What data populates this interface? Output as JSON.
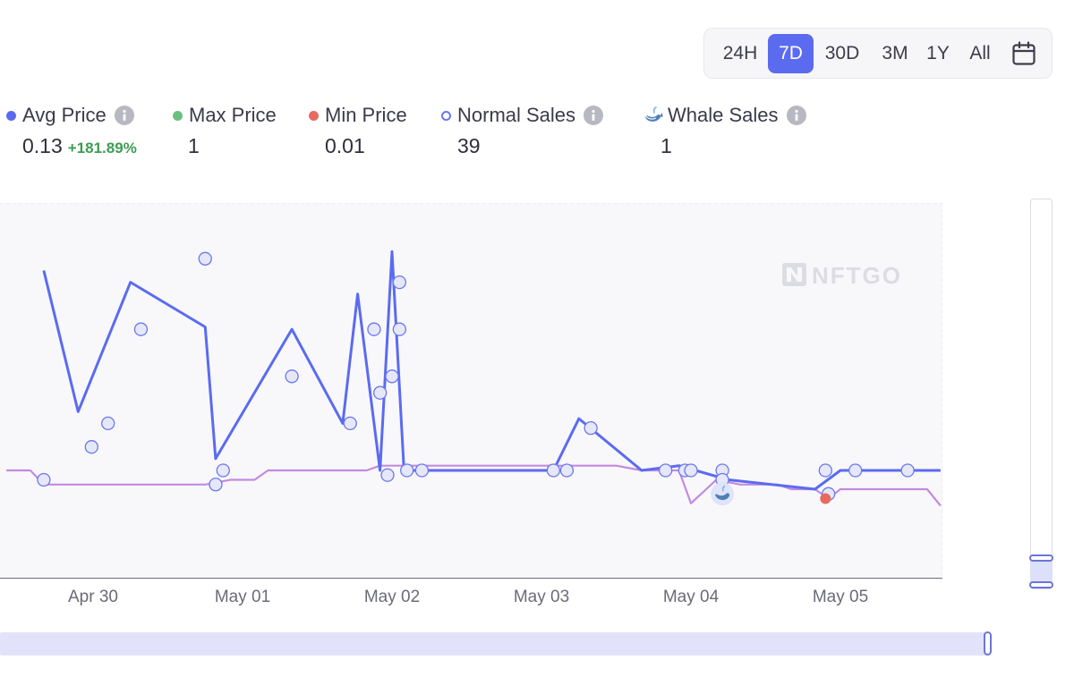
{
  "time_range": {
    "options": [
      "24H",
      "7D",
      "30D",
      "3M",
      "1Y",
      "All"
    ],
    "selected": "7D",
    "calendar_icon": "calendar-icon"
  },
  "stats": {
    "avg_price": {
      "label": "Avg Price",
      "value": "0.13",
      "change": "+181.89%",
      "color": "#5b6bf0"
    },
    "max_price": {
      "label": "Max Price",
      "value": "1",
      "color": "#6cc07f"
    },
    "min_price": {
      "label": "Min Price",
      "value": "0.01",
      "color": "#e86a5e"
    },
    "normal_sales": {
      "label": "Normal Sales",
      "value": "39",
      "color": "#6a78ee"
    },
    "whale_sales": {
      "label": "Whale Sales",
      "value": "1",
      "icon": "whale-icon"
    }
  },
  "watermark": "NFTGO",
  "chart_data": {
    "type": "line",
    "x_ticks": [
      "Apr 30",
      "May 01",
      "May 02",
      "May 03",
      "May 04",
      "May 05"
    ],
    "y_axis_labels": false,
    "grid": false,
    "colors": {
      "avg_price": "#5b6bf0",
      "floor_line": "#c48ae0",
      "normal_sale": "#6a78ee",
      "min_price_marker": "#e86a5e",
      "plot_background": "#f8f8fb"
    },
    "series": [
      {
        "name": "Avg Price",
        "style": "line",
        "points": [
          [
            -0.33,
            0.85
          ],
          [
            -0.1,
            0.25
          ],
          [
            0.25,
            0.8
          ],
          [
            0.75,
            0.61
          ],
          [
            0.82,
            0.05
          ],
          [
            1.33,
            0.6
          ],
          [
            1.67,
            0.2
          ],
          [
            1.77,
            0.75
          ],
          [
            1.92,
            0.0
          ],
          [
            2.0,
            0.93
          ],
          [
            2.08,
            0.0
          ],
          [
            2.5,
            0.0
          ],
          [
            3.08,
            0.0
          ],
          [
            3.25,
            0.22
          ],
          [
            3.67,
            0.0
          ],
          [
            3.92,
            0.02
          ],
          [
            4.25,
            -0.04
          ],
          [
            4.83,
            -0.08
          ],
          [
            5.0,
            0.0
          ],
          [
            5.67,
            0.0
          ]
        ]
      },
      {
        "style": "line",
        "points": [
          [
            -0.58,
            0.0
          ],
          [
            -0.42,
            0.0
          ],
          [
            -0.33,
            -0.06
          ],
          [
            0.75,
            -0.06
          ],
          [
            0.92,
            -0.04
          ],
          [
            1.08,
            -0.04
          ],
          [
            1.17,
            0.0
          ],
          [
            1.83,
            0.0
          ],
          [
            1.92,
            0.02
          ],
          [
            3.5,
            0.02
          ],
          [
            3.67,
            0.0
          ],
          [
            3.92,
            0.0
          ],
          [
            4.0,
            -0.14
          ],
          [
            4.17,
            -0.04
          ],
          [
            4.33,
            -0.06
          ],
          [
            4.58,
            -0.06
          ],
          [
            4.67,
            -0.08
          ],
          [
            4.83,
            -0.08
          ],
          [
            4.92,
            -0.12
          ],
          [
            5.0,
            -0.08
          ],
          [
            5.58,
            -0.08
          ],
          [
            5.67,
            -0.15
          ]
        ]
      },
      {
        "name": "Normal Sales",
        "style": "scatter",
        "points": [
          [
            -0.33,
            -0.04
          ],
          [
            -0.01,
            0.1
          ],
          [
            0.1,
            0.2
          ],
          [
            0.32,
            0.6
          ],
          [
            0.75,
            0.9
          ],
          [
            0.82,
            -0.06
          ],
          [
            0.87,
            0.0
          ],
          [
            1.33,
            0.4
          ],
          [
            1.72,
            0.2
          ],
          [
            1.88,
            0.6
          ],
          [
            1.92,
            0.33
          ],
          [
            1.97,
            -0.02
          ],
          [
            2.0,
            0.4
          ],
          [
            2.05,
            0.8
          ],
          [
            2.05,
            0.6
          ],
          [
            2.1,
            0.0
          ],
          [
            2.2,
            0.0
          ],
          [
            3.08,
            0.0
          ],
          [
            3.17,
            0.0
          ],
          [
            3.33,
            0.18
          ],
          [
            3.83,
            0.0
          ],
          [
            3.96,
            0.0
          ],
          [
            4.0,
            0.0
          ],
          [
            4.21,
            0.0
          ],
          [
            4.21,
            -0.04
          ],
          [
            4.9,
            0.0
          ],
          [
            4.92,
            -0.1
          ],
          [
            5.1,
            0.0
          ],
          [
            5.45,
            0.0
          ]
        ]
      },
      {
        "name": "Whale Sales",
        "style": "marker",
        "points": [
          [
            4.21,
            -0.1
          ]
        ]
      },
      {
        "name": "Min Price",
        "style": "marker",
        "points": [
          [
            4.9,
            -0.12
          ]
        ]
      }
    ]
  }
}
